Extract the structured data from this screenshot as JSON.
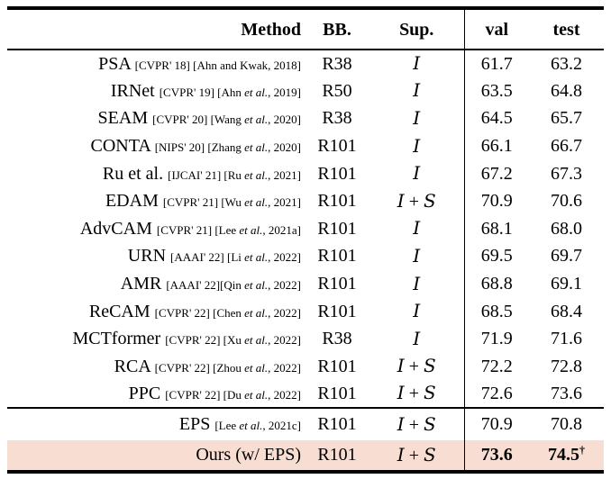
{
  "table": {
    "headers": [
      "Method",
      "BB.",
      "Sup.",
      "val",
      "test"
    ],
    "highlight_color": "#f8ded2",
    "rows": [
      {
        "method": "PSA",
        "cites": "[CVPR' 18] [Ahn and Kwak, 2018]",
        "bb": "R38",
        "sup": "I",
        "val": "61.7",
        "test": "63.2"
      },
      {
        "method": "IRNet",
        "cites": "[CVPR' 19] [Ahn et al., 2019]",
        "bb": "R50",
        "sup": "I",
        "val": "63.5",
        "test": "64.8"
      },
      {
        "method": "SEAM",
        "cites": "[CVPR' 20] [Wang et al., 2020]",
        "bb": "R38",
        "sup": "I",
        "val": "64.5",
        "test": "65.7"
      },
      {
        "method": "CONTA",
        "cites": "[NIPS' 20] [Zhang et al., 2020]",
        "bb": "R101",
        "sup": "I",
        "val": "66.1",
        "test": "66.7"
      },
      {
        "method": "Ru et al.",
        "cites": "[IJCAI' 21] [Ru et al., 2021]",
        "bb": "R101",
        "sup": "I",
        "val": "67.2",
        "test": "67.3"
      },
      {
        "method": "EDAM",
        "cites": "[CVPR' 21] [Wu et al., 2021]",
        "bb": "R101",
        "sup": "I + S",
        "val": "70.9",
        "test": "70.6"
      },
      {
        "method": "AdvCAM",
        "cites": "[CVPR' 21] [Lee et al., 2021a]",
        "bb": "R101",
        "sup": "I",
        "val": "68.1",
        "test": "68.0"
      },
      {
        "method": "URN",
        "cites": "[AAAI' 22] [Li et al., 2022]",
        "bb": "R101",
        "sup": "I",
        "val": "69.5",
        "test": "69.7"
      },
      {
        "method": "AMR",
        "cites": "[AAAI' 22][Qin et al., 2022]",
        "bb": "R101",
        "sup": "I",
        "val": "68.8",
        "test": "69.1"
      },
      {
        "method": "ReCAM",
        "cites": "[CVPR' 22] [Chen et al., 2022]",
        "bb": "R101",
        "sup": "I",
        "val": "68.5",
        "test": "68.4"
      },
      {
        "method": "MCTformer",
        "cites": "[CVPR' 22] [Xu et al., 2022]",
        "bb": "R38",
        "sup": "I",
        "val": "71.9",
        "test": "71.6"
      },
      {
        "method": "RCA",
        "cites": "[CVPR' 22] [Zhou et al., 2022]",
        "bb": "R101",
        "sup": "I + S",
        "val": "72.2",
        "test": "72.8"
      },
      {
        "method": "PPC",
        "cites": "[CVPR' 22] [Du et al., 2022]",
        "bb": "R101",
        "sup": "I + S",
        "val": "72.6",
        "test": "73.6"
      }
    ],
    "footer_rows": [
      {
        "method": "EPS",
        "cites": "[Lee et al., 2021c]",
        "bb": "R101",
        "sup": "I + S",
        "val": "70.9",
        "test": "70.8"
      },
      {
        "method": "Ours (w/ EPS)",
        "cites": "",
        "bb": "R101",
        "sup": "I + S",
        "val": "73.6",
        "test": "74.5",
        "bold_values": true,
        "highlight": true,
        "test_superscript": "†"
      }
    ]
  }
}
